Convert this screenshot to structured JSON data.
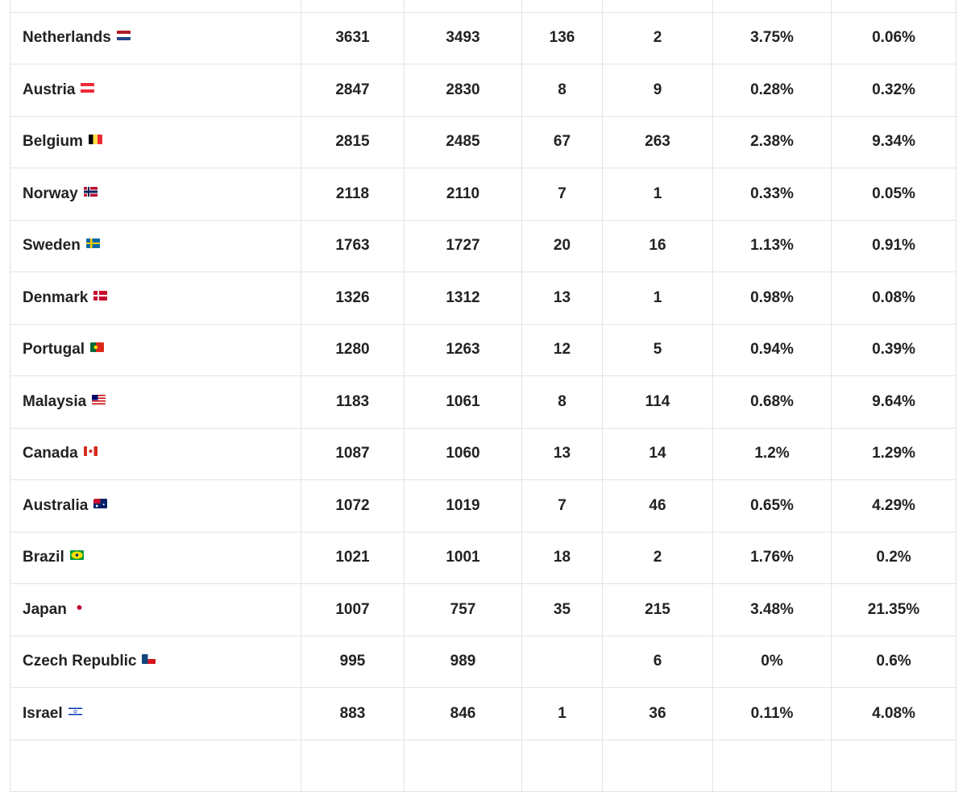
{
  "table": {
    "rows": [
      {
        "country": "Netherlands",
        "flag": "nl-flag-icon",
        "cases": "3631",
        "active": "3493",
        "deaths": "136",
        "recovered": "2",
        "death_rate": "3.75%",
        "recovery_rate": "0.06%"
      },
      {
        "country": "Austria",
        "flag": "at-flag-icon",
        "cases": "2847",
        "active": "2830",
        "deaths": "8",
        "recovered": "9",
        "death_rate": "0.28%",
        "recovery_rate": "0.32%"
      },
      {
        "country": "Belgium",
        "flag": "be-flag-icon",
        "cases": "2815",
        "active": "2485",
        "deaths": "67",
        "recovered": "263",
        "death_rate": "2.38%",
        "recovery_rate": "9.34%"
      },
      {
        "country": "Norway",
        "flag": "no-flag-icon",
        "cases": "2118",
        "active": "2110",
        "deaths": "7",
        "recovered": "1",
        "death_rate": "0.33%",
        "recovery_rate": "0.05%"
      },
      {
        "country": "Sweden",
        "flag": "se-flag-icon",
        "cases": "1763",
        "active": "1727",
        "deaths": "20",
        "recovered": "16",
        "death_rate": "1.13%",
        "recovery_rate": "0.91%"
      },
      {
        "country": "Denmark",
        "flag": "dk-flag-icon",
        "cases": "1326",
        "active": "1312",
        "deaths": "13",
        "recovered": "1",
        "death_rate": "0.98%",
        "recovery_rate": "0.08%"
      },
      {
        "country": "Portugal",
        "flag": "pt-flag-icon",
        "cases": "1280",
        "active": "1263",
        "deaths": "12",
        "recovered": "5",
        "death_rate": "0.94%",
        "recovery_rate": "0.39%"
      },
      {
        "country": "Malaysia",
        "flag": "my-flag-icon",
        "cases": "1183",
        "active": "1061",
        "deaths": "8",
        "recovered": "114",
        "death_rate": "0.68%",
        "recovery_rate": "9.64%"
      },
      {
        "country": "Canada",
        "flag": "ca-flag-icon",
        "cases": "1087",
        "active": "1060",
        "deaths": "13",
        "recovered": "14",
        "death_rate": "1.2%",
        "recovery_rate": "1.29%"
      },
      {
        "country": "Australia",
        "flag": "au-flag-icon",
        "cases": "1072",
        "active": "1019",
        "deaths": "7",
        "recovered": "46",
        "death_rate": "0.65%",
        "recovery_rate": "4.29%"
      },
      {
        "country": "Brazil",
        "flag": "br-flag-icon",
        "cases": "1021",
        "active": "1001",
        "deaths": "18",
        "recovered": "2",
        "death_rate": "1.76%",
        "recovery_rate": "0.2%"
      },
      {
        "country": "Japan",
        "flag": "jp-flag-icon",
        "cases": "1007",
        "active": "757",
        "deaths": "35",
        "recovered": "215",
        "death_rate": "3.48%",
        "recovery_rate": "21.35%"
      },
      {
        "country": "Czech Republic",
        "flag": "cz-flag-icon",
        "cases": "995",
        "active": "989",
        "deaths": "",
        "recovered": "6",
        "death_rate": "0%",
        "recovery_rate": "0.6%"
      },
      {
        "country": "Israel",
        "flag": "il-flag-icon",
        "cases": "883",
        "active": "846",
        "deaths": "1",
        "recovered": "36",
        "death_rate": "0.11%",
        "recovery_rate": "4.08%"
      }
    ]
  }
}
